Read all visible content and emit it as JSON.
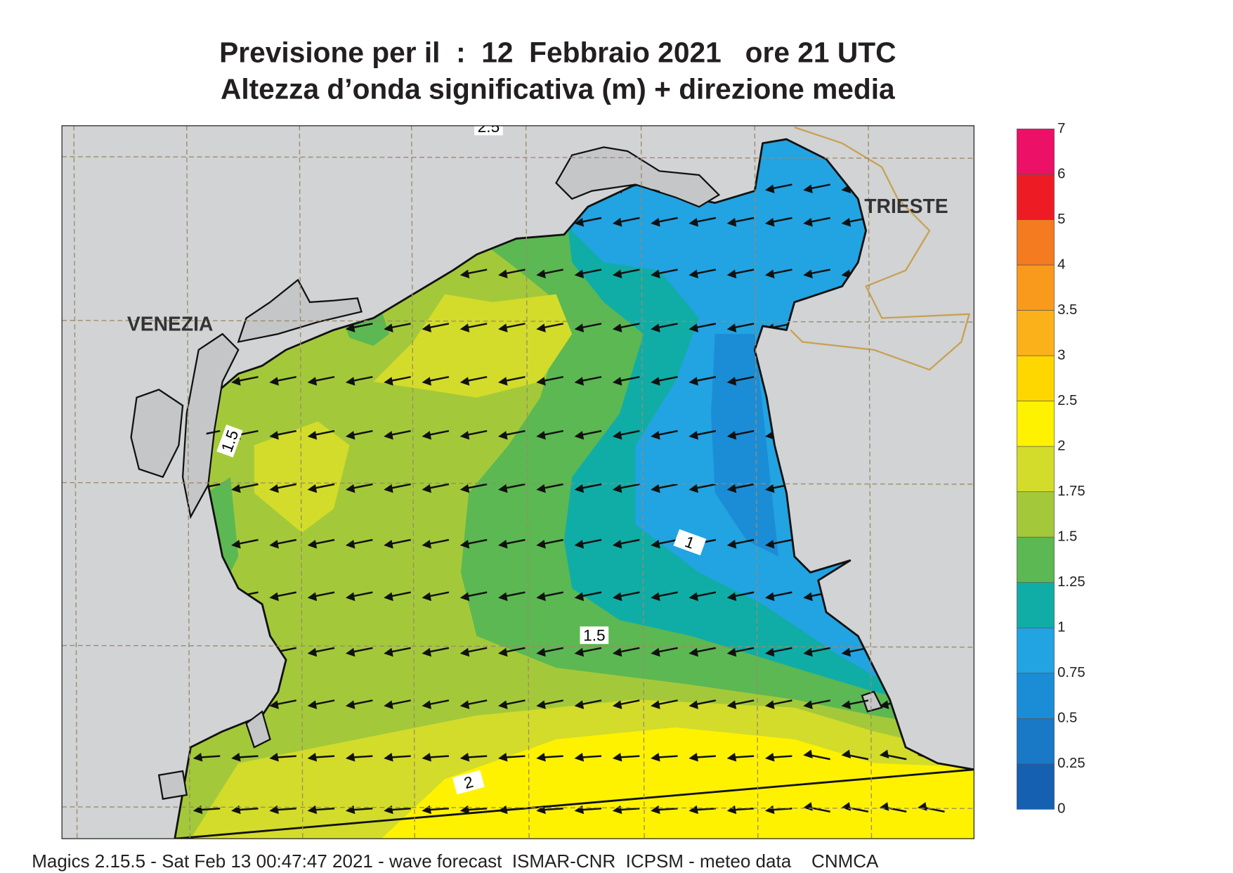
{
  "header": {
    "title_lines": [
      "Previsione per il  :  12  Febbraio 2021   ore 21 UTC",
      "Altezza d’onda significativa (m) + direzione media"
    ]
  },
  "map": {
    "places": [
      {
        "label": "VENEZIA"
      },
      {
        "label": "TRIESTE"
      }
    ],
    "contour_labels": [
      "1.5",
      "1",
      "1.5",
      "2",
      "2.5"
    ]
  },
  "colorbar": {
    "levels": [
      0,
      0.25,
      0.5,
      0.75,
      1,
      1.25,
      1.5,
      1.75,
      2,
      2.5,
      3,
      3.5,
      4,
      5,
      6,
      7
    ],
    "colors": [
      "#1560b0",
      "#1a79c6",
      "#1b8dd6",
      "#22a3e2",
      "#10ada6",
      "#5cb852",
      "#a3c93a",
      "#d3dc2a",
      "#fff200",
      "#ffd700",
      "#fbb21a",
      "#f99a1c",
      "#f47b20",
      "#ed1c24",
      "#ec1066"
    ]
  },
  "footer": "Magics 2.15.5 - Sat Feb 13 00:47:47 2021 - wave forecast  ISMAR-CNR  ICPSM - meteo data    CNMCA"
}
